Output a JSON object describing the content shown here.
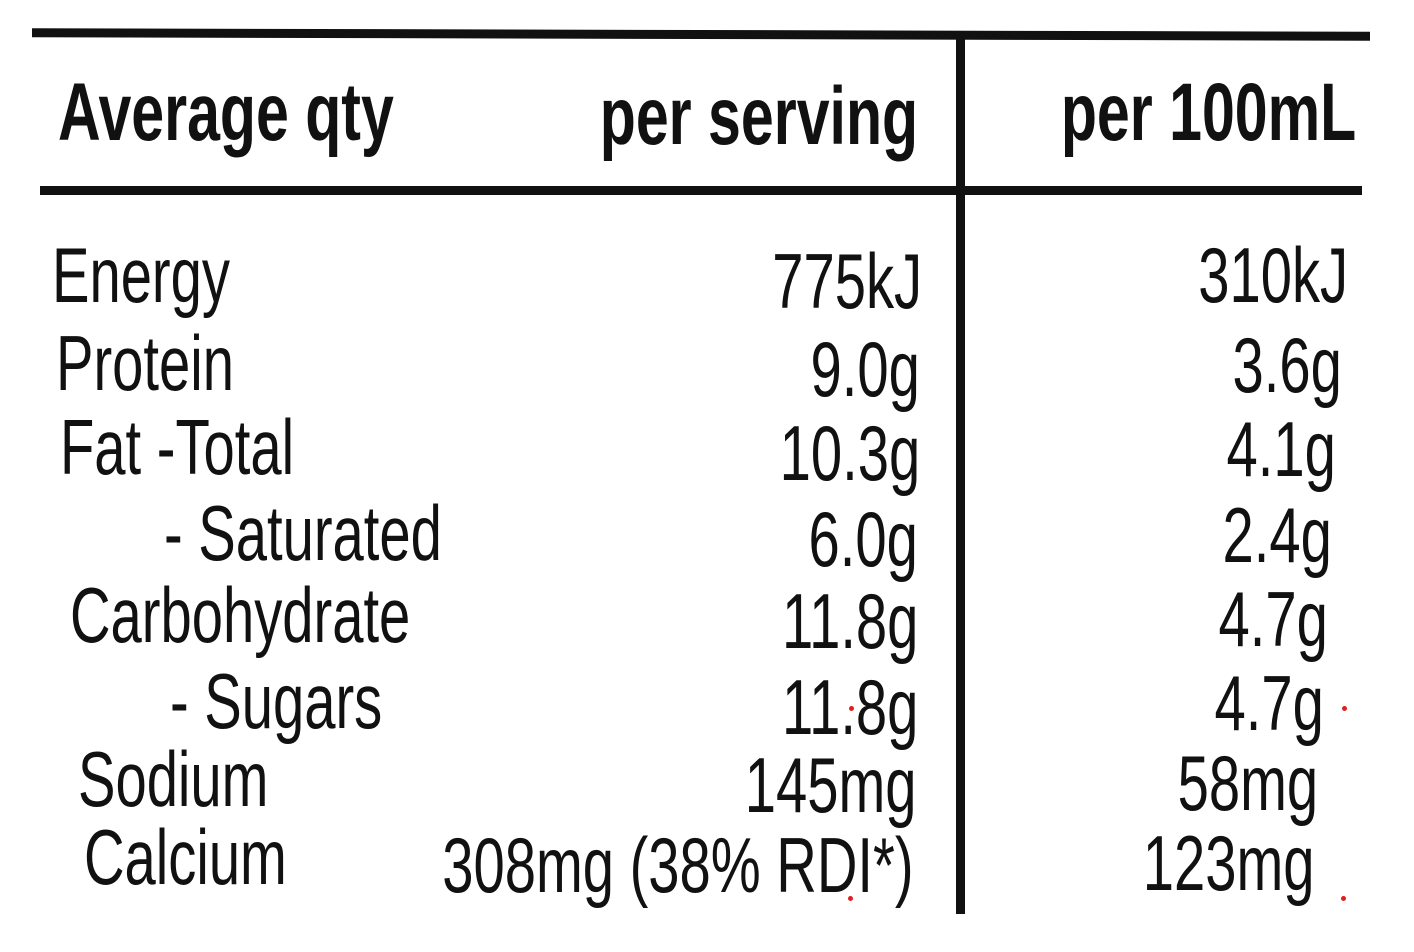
{
  "header": {
    "col_label": "Average qty",
    "col_per_serving": "per serving",
    "col_per_100ml": "per 100mL"
  },
  "rows": [
    {
      "name": "Energy",
      "per_serving": "775kJ",
      "per_100ml": "310kJ"
    },
    {
      "name": "Protein",
      "per_serving": "9.0g",
      "per_100ml": "3.6g"
    },
    {
      "name": "Fat -Total",
      "per_serving": "10.3g",
      "per_100ml": "4.1g"
    },
    {
      "name": "- Saturated",
      "per_serving": "6.0g",
      "per_100ml": "2.4g"
    },
    {
      "name": "Carbohydrate",
      "per_serving": "11.8g",
      "per_100ml": "4.7g"
    },
    {
      "name": "- Sugars",
      "per_serving": "11.8g",
      "per_100ml": "4.7g"
    },
    {
      "name": "Sodium",
      "per_serving": "145mg",
      "per_100ml": "58mg"
    },
    {
      "name": "Calcium",
      "per_serving": "308mg (38% RDI*)",
      "per_100ml": "123mg"
    }
  ],
  "colors": {
    "ink": "#111111",
    "background": "#ffffff",
    "marker": "#e0201c"
  }
}
